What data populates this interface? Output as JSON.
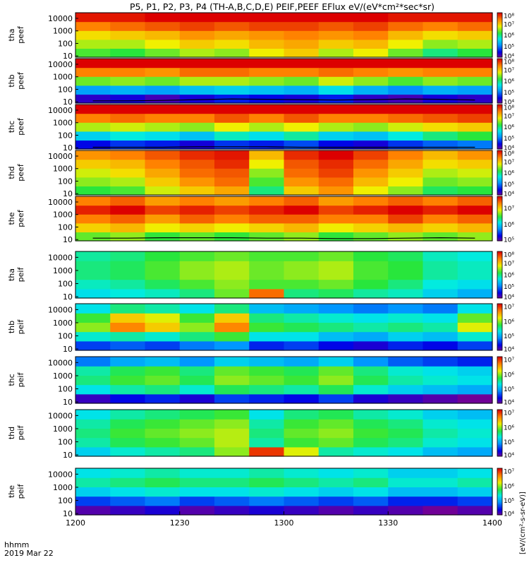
{
  "title": "P5, P1, P2, P3, P4 (TH-A,B,C,D,E) PEIF,PEEF EFlux eV/(eV*cm²*sec*sr)",
  "time_axis": {
    "label_line1": "hhmm",
    "label_line2": "2019 Mar 22",
    "ticks": [
      "1200",
      "1230",
      "1300",
      "1330",
      "1400"
    ]
  },
  "colorbar_label": "[eV/(cm²-s-sr-eV)]",
  "chart_data": {
    "type": "heatmap",
    "x_range": [
      "1200",
      "1400"
    ],
    "y_scale": "log",
    "y_ticks": [
      "10",
      "100",
      "1000",
      "10000"
    ],
    "panels": [
      {
        "label1": "tha",
        "label2": "peef",
        "cbar_ticks": [
          "10⁴",
          "10⁵",
          "10⁶",
          "10⁷",
          "10⁸"
        ],
        "cbar_range": [
          4,
          8
        ],
        "levels": [
          [
            6.3,
            6.6,
            6.9,
            7.4,
            7.9
          ],
          [
            6.2,
            6.6,
            7.0,
            7.5,
            7.9
          ],
          [
            6.4,
            6.8,
            7.1,
            7.6,
            8.0
          ],
          [
            6.6,
            7.0,
            7.3,
            7.7,
            8.0
          ],
          [
            6.5,
            6.9,
            7.2,
            7.6,
            8.0
          ],
          [
            6.8,
            7.1,
            7.3,
            7.7,
            8.0
          ],
          [
            7.0,
            7.2,
            7.4,
            7.7,
            8.0
          ],
          [
            6.6,
            7.0,
            7.3,
            7.6,
            8.0
          ],
          [
            6.8,
            7.1,
            7.4,
            7.7,
            8.0
          ],
          [
            6.4,
            6.8,
            7.1,
            7.5,
            7.9
          ],
          [
            6.0,
            6.5,
            6.9,
            7.4,
            7.9
          ],
          [
            6.2,
            6.6,
            7.0,
            7.5,
            7.9
          ]
        ],
        "line": []
      },
      {
        "label1": "thb",
        "label2": "peef",
        "cbar_ticks": [
          "10⁴",
          "10⁵",
          "10⁶",
          "10⁷",
          "10⁸"
        ],
        "cbar_range": [
          4,
          8
        ],
        "levels": [
          [
            4.3,
            5.2,
            6.4,
            7.4,
            8.0
          ],
          [
            4.4,
            5.3,
            6.5,
            7.4,
            8.0
          ],
          [
            4.2,
            5.2,
            6.4,
            7.3,
            8.0
          ],
          [
            4.4,
            5.4,
            6.6,
            7.5,
            8.0
          ],
          [
            4.6,
            5.5,
            6.6,
            7.5,
            8.0
          ],
          [
            4.5,
            5.4,
            6.5,
            7.4,
            8.0
          ],
          [
            4.4,
            5.3,
            6.4,
            7.4,
            8.0
          ],
          [
            4.6,
            5.6,
            6.7,
            7.5,
            8.0
          ],
          [
            4.3,
            5.3,
            6.5,
            7.4,
            8.0
          ],
          [
            4.2,
            5.1,
            6.3,
            7.3,
            8.0
          ],
          [
            4.4,
            5.3,
            6.5,
            7.4,
            8.0
          ],
          [
            4.3,
            5.2,
            6.4,
            7.4,
            8.0
          ]
        ],
        "line": [
          12,
          12,
          13,
          15,
          17,
          16,
          15,
          14,
          15,
          17,
          16,
          14
        ]
      },
      {
        "label1": "thc",
        "label2": "peef",
        "cbar_ticks": [
          "10⁴",
          "10⁵",
          "10⁶",
          "10⁷",
          "10⁸"
        ],
        "cbar_range": [
          4,
          8
        ],
        "levels": [
          [
            4.5,
            5.5,
            6.6,
            7.4,
            8.0
          ],
          [
            4.7,
            5.7,
            6.7,
            7.5,
            8.0
          ],
          [
            4.6,
            5.6,
            6.6,
            7.4,
            8.0
          ],
          [
            4.4,
            5.4,
            6.5,
            7.4,
            8.0
          ],
          [
            4.7,
            5.8,
            6.8,
            7.6,
            8.0
          ],
          [
            4.6,
            5.6,
            6.6,
            7.4,
            8.0
          ],
          [
            4.8,
            5.9,
            6.8,
            7.6,
            8.0
          ],
          [
            4.5,
            5.5,
            6.6,
            7.4,
            8.0
          ],
          [
            4.4,
            5.4,
            6.5,
            7.4,
            8.0
          ],
          [
            4.7,
            5.7,
            6.7,
            7.5,
            8.0
          ],
          [
            4.9,
            6.0,
            6.9,
            7.6,
            8.0
          ],
          [
            5.0,
            6.2,
            7.0,
            7.7,
            8.0
          ]
        ],
        "line": [
          11,
          11,
          11,
          12,
          12,
          12,
          11,
          11,
          11,
          11,
          11,
          11
        ]
      },
      {
        "label1": "thd",
        "label2": "peef",
        "cbar_ticks": [
          "10⁴",
          "10⁵",
          "10⁶",
          "10⁷",
          "10⁸"
        ],
        "cbar_range": [
          4,
          8
        ],
        "levels": [
          [
            6.2,
            6.5,
            6.7,
            7.0,
            7.3
          ],
          [
            6.3,
            6.6,
            6.9,
            7.1,
            7.4
          ],
          [
            6.7,
            7.0,
            7.2,
            7.4,
            7.6
          ],
          [
            7.0,
            7.3,
            7.5,
            7.6,
            7.8
          ],
          [
            7.2,
            7.5,
            7.6,
            7.8,
            7.9
          ],
          [
            6.0,
            6.3,
            6.5,
            6.8,
            7.1
          ],
          [
            7.0,
            7.3,
            7.5,
            7.6,
            7.8
          ],
          [
            7.3,
            7.5,
            7.7,
            7.8,
            8.0
          ],
          [
            6.8,
            7.1,
            7.3,
            7.5,
            7.7
          ],
          [
            6.5,
            6.8,
            7.0,
            7.2,
            7.4
          ],
          [
            6.1,
            6.4,
            6.6,
            6.9,
            7.1
          ],
          [
            6.2,
            6.5,
            6.7,
            7.0,
            7.3
          ]
        ],
        "line": []
      },
      {
        "label1": "the",
        "label2": "peef",
        "cbar_ticks": [
          "10⁵",
          "10⁶",
          "10⁷"
        ],
        "cbar_range": [
          5,
          7.7
        ],
        "levels": [
          [
            6.6,
            7.0,
            7.3,
            7.6,
            7.3
          ],
          [
            6.7,
            7.1,
            7.4,
            7.7,
            7.4
          ],
          [
            6.5,
            6.9,
            7.2,
            7.5,
            7.2
          ],
          [
            6.6,
            7.0,
            7.4,
            7.6,
            7.3
          ],
          [
            6.5,
            6.9,
            7.3,
            7.5,
            7.2
          ],
          [
            6.6,
            7.0,
            7.4,
            7.6,
            7.3
          ],
          [
            6.7,
            7.1,
            7.4,
            7.7,
            7.4
          ],
          [
            6.5,
            6.9,
            7.3,
            7.5,
            7.2
          ],
          [
            6.6,
            7.0,
            7.3,
            7.6,
            7.3
          ],
          [
            6.7,
            7.1,
            7.5,
            7.7,
            7.4
          ],
          [
            6.6,
            7.0,
            7.3,
            7.6,
            7.3
          ],
          [
            6.7,
            7.1,
            7.4,
            7.7,
            7.4
          ]
        ],
        "line": [
          13,
          13,
          14,
          14,
          14,
          13,
          13,
          12,
          12,
          13,
          14,
          13
        ]
      },
      {
        "label1": "tha",
        "label2": "peif",
        "cbar_ticks": [
          "10⁴",
          "10⁵",
          "10⁶",
          "10⁷",
          "10⁸"
        ],
        "cbar_range": [
          4,
          8
        ],
        "levels": [
          [
            5.6,
            5.8,
            6.0,
            6.0,
            5.9
          ],
          [
            5.7,
            5.9,
            6.1,
            6.1,
            6.0
          ],
          [
            5.8,
            6.1,
            6.3,
            6.3,
            6.2
          ],
          [
            6.0,
            6.3,
            6.5,
            6.5,
            6.3
          ],
          [
            6.4,
            6.5,
            6.6,
            6.6,
            6.4
          ],
          [
            7.5,
            6.3,
            6.4,
            6.4,
            6.3
          ],
          [
            6.0,
            6.3,
            6.5,
            6.5,
            6.3
          ],
          [
            6.1,
            6.4,
            6.6,
            6.6,
            6.4
          ],
          [
            5.9,
            6.2,
            6.3,
            6.3,
            6.2
          ],
          [
            5.8,
            6.0,
            6.2,
            6.2,
            6.1
          ],
          [
            5.5,
            5.7,
            5.9,
            5.9,
            5.8
          ],
          [
            5.3,
            5.6,
            5.8,
            5.8,
            5.7
          ]
        ],
        "line": []
      },
      {
        "label1": "thb",
        "label2": "peif",
        "cbar_ticks": [
          "10⁴",
          "10⁵",
          "10⁶",
          "10⁷"
        ],
        "cbar_range": [
          4,
          7.2
        ],
        "levels": [
          [
            4.6,
            5.4,
            6.0,
            5.8,
            5.3
          ],
          [
            4.7,
            5.5,
            6.7,
            6.4,
            5.6
          ],
          [
            4.6,
            5.4,
            6.4,
            6.2,
            5.5
          ],
          [
            4.8,
            5.6,
            6.0,
            5.8,
            5.3
          ],
          [
            4.9,
            5.8,
            6.7,
            6.4,
            5.6
          ],
          [
            4.5,
            5.3,
            5.8,
            5.6,
            5.1
          ],
          [
            4.6,
            5.3,
            5.7,
            5.5,
            5.0
          ],
          [
            4.4,
            5.1,
            5.6,
            5.4,
            4.9
          ],
          [
            4.3,
            5.0,
            5.5,
            5.3,
            4.8
          ],
          [
            4.5,
            5.2,
            5.6,
            5.4,
            4.9
          ],
          [
            4.4,
            5.1,
            5.5,
            5.3,
            4.8
          ],
          [
            4.6,
            5.4,
            6.2,
            5.9,
            5.3
          ]
        ],
        "line": []
      },
      {
        "label1": "thc",
        "label2": "peif",
        "cbar_ticks": [
          "10⁴",
          "10⁵",
          "10⁶",
          "10⁷"
        ],
        "cbar_range": [
          4,
          7.2
        ],
        "levels": [
          [
            4.2,
            5.3,
            5.6,
            5.5,
            4.8
          ],
          [
            4.4,
            5.5,
            5.8,
            5.7,
            5.0
          ],
          [
            4.5,
            5.6,
            5.9,
            5.8,
            5.1
          ],
          [
            4.3,
            5.4,
            5.7,
            5.6,
            4.9
          ],
          [
            4.6,
            5.7,
            6.0,
            5.9,
            5.2
          ],
          [
            4.5,
            5.6,
            5.9,
            5.8,
            5.1
          ],
          [
            4.4,
            5.5,
            5.8,
            5.7,
            5.0
          ],
          [
            4.6,
            5.7,
            6.0,
            5.9,
            5.2
          ],
          [
            4.3,
            5.4,
            5.7,
            5.6,
            4.9
          ],
          [
            4.2,
            5.2,
            5.5,
            5.4,
            4.7
          ],
          [
            4.1,
            5.1,
            5.4,
            5.3,
            4.6
          ],
          [
            4.0,
            5.0,
            5.3,
            5.2,
            4.5
          ]
        ],
        "line": []
      },
      {
        "label1": "thd",
        "label2": "peif",
        "cbar_ticks": [
          "10⁴",
          "10⁵",
          "10⁶",
          "10⁷"
        ],
        "cbar_range": [
          4,
          7.2
        ],
        "levels": [
          [
            5.2,
            5.5,
            5.6,
            5.5,
            5.3
          ],
          [
            5.4,
            5.7,
            5.8,
            5.7,
            5.5
          ],
          [
            5.5,
            5.8,
            5.9,
            5.8,
            5.6
          ],
          [
            5.6,
            5.9,
            6.0,
            5.9,
            5.7
          ],
          [
            6.0,
            6.1,
            6.1,
            6.0,
            5.8
          ],
          [
            7.0,
            5.5,
            5.6,
            5.5,
            5.3
          ],
          [
            6.2,
            5.8,
            5.9,
            5.8,
            5.6
          ],
          [
            5.5,
            5.9,
            6.0,
            5.9,
            5.7
          ],
          [
            5.4,
            5.7,
            5.8,
            5.7,
            5.5
          ],
          [
            5.3,
            5.6,
            5.7,
            5.6,
            5.4
          ],
          [
            5.1,
            5.4,
            5.5,
            5.4,
            5.2
          ],
          [
            5.0,
            5.3,
            5.4,
            5.3,
            5.1
          ]
        ],
        "line": []
      },
      {
        "label1": "the",
        "label2": "peif",
        "cbar_ticks": [
          "10⁴",
          "10⁵",
          "10⁶",
          "10⁷"
        ],
        "cbar_range": [
          4,
          7.2
        ],
        "levels": [
          [
            4.1,
            4.6,
            5.2,
            5.5,
            5.3
          ],
          [
            4.2,
            4.7,
            5.3,
            5.6,
            5.4
          ],
          [
            4.3,
            4.8,
            5.4,
            5.7,
            5.5
          ],
          [
            4.1,
            4.6,
            5.3,
            5.6,
            5.4
          ],
          [
            4.2,
            4.7,
            5.3,
            5.6,
            5.4
          ],
          [
            4.3,
            4.8,
            5.4,
            5.7,
            5.5
          ],
          [
            4.2,
            4.7,
            5.3,
            5.6,
            5.4
          ],
          [
            4.1,
            4.6,
            5.2,
            5.5,
            5.3
          ],
          [
            4.2,
            4.7,
            5.3,
            5.6,
            5.4
          ],
          [
            4.1,
            4.5,
            5.1,
            5.4,
            5.2
          ],
          [
            4.0,
            4.5,
            5.1,
            5.4,
            5.2
          ],
          [
            4.1,
            4.6,
            5.2,
            5.5,
            5.3
          ]
        ],
        "line": []
      }
    ]
  }
}
